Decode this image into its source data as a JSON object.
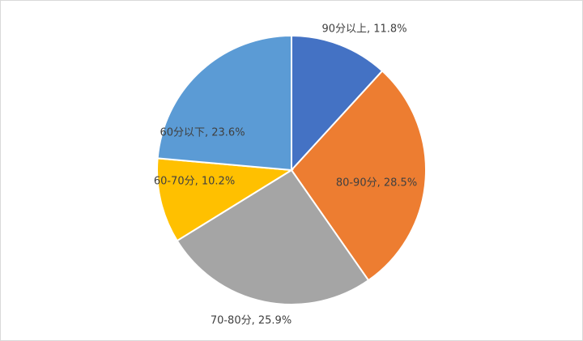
{
  "chart_data": {
    "type": "pie",
    "values": [
      11.8,
      28.5,
      25.9,
      10.2,
      23.6
    ],
    "value_labels": [
      "90分以上, 11.8%",
      "80-90分, 28.5%",
      "70-80分, 25.9%",
      "60-70分, 10.2%",
      "60分以下, 23.6%"
    ],
    "colors": [
      "#4472c4",
      "#ed7d31",
      "#a5a5a5",
      "#ffc000",
      "#5b9bd5"
    ]
  }
}
